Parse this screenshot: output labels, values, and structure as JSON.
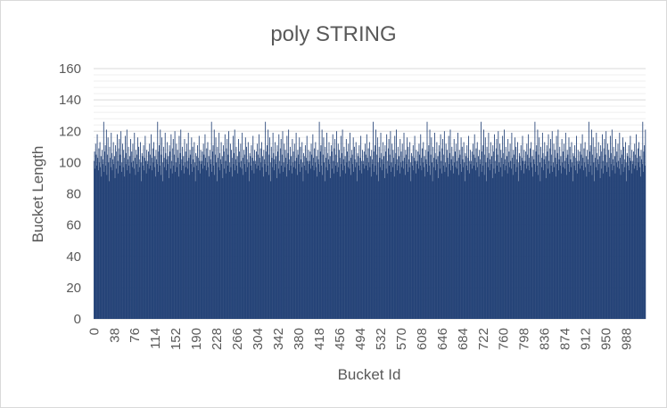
{
  "chart_data": {
    "type": "bar",
    "title": "poly STRING",
    "xlabel": "Bucket Id",
    "ylabel": "Bucket Length",
    "ylim": [
      0,
      160
    ],
    "yticks": [
      0,
      20,
      40,
      60,
      80,
      100,
      120,
      140,
      160
    ],
    "xticks": [
      "0",
      "38",
      "76",
      "114",
      "152",
      "190",
      "228",
      "266",
      "304",
      "342",
      "380",
      "418",
      "456",
      "494",
      "532",
      "570",
      "608",
      "646",
      "684",
      "722",
      "760",
      "798",
      "836",
      "874",
      "912",
      "950",
      "988"
    ],
    "x_range": [
      0,
      1023
    ],
    "series": [
      {
        "values": [
          101,
          107,
          96,
          112,
          105,
          98,
          118,
          103,
          95,
          109,
          100,
          113,
          97,
          104,
          91,
          108,
          102,
          99,
          126,
          94,
          107,
          111,
          98,
          121,
          92,
          105,
          116,
          100,
          88,
          110,
          103,
          97,
          119,
          106,
          95,
          102,
          113,
          99,
          104,
          90,
          111,
          107,
          96,
          118,
          101,
          93,
          109,
          115,
          98,
          105,
          120,
          94,
          100,
          112,
          97,
          108,
          103,
          91,
          117,
          99,
          106,
          121,
          95,
          102,
          110,
          98,
          104,
          93,
          115,
          100,
          107,
          97,
          112,
          101,
          96,
          119,
          103,
          92,
          108,
          105,
          99,
          116,
          94,
          110,
          102,
          97,
          113,
          100,
          88,
          106,
          104,
          98,
          111,
          95,
          103,
          117,
          101,
          93,
          108,
          99
        ],
        "color": "#264478"
      }
    ]
  }
}
